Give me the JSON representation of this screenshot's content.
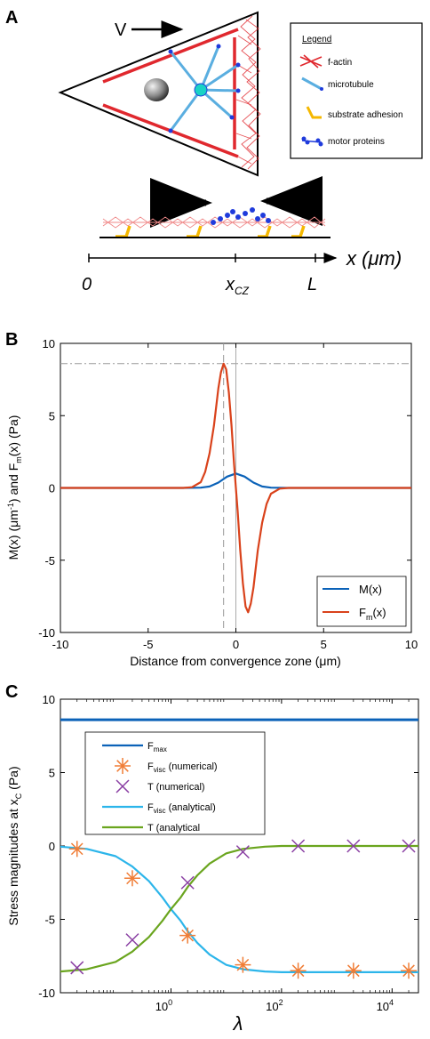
{
  "panel_a": {
    "label": "A",
    "velocity_label": "V",
    "legend": {
      "title": "Legend",
      "items": [
        {
          "label": "f-actin",
          "icon": "f-actin-icon",
          "color": "#e0282e"
        },
        {
          "label": "microtubule",
          "icon": "microtubule-icon",
          "color": "#5aaee0"
        },
        {
          "label": "substrate adhesion",
          "icon": "adhesion-icon",
          "color": "#f5b800"
        },
        {
          "label": "motor proteins",
          "icon": "motor-protein-icon",
          "color": "#1f3bdc"
        }
      ]
    },
    "axis": {
      "label": "x (μm)",
      "ticks": [
        "0",
        "x",
        "L"
      ],
      "tick_sub": "CZ"
    }
  },
  "chart_data": [
    {
      "panel": "B",
      "type": "line",
      "xlabel": "Distance from convergence zone (μm)",
      "ylabel": "M(x) (μm⁻¹) and F_m(x) (Pa)",
      "xlim": [
        -10,
        10
      ],
      "ylim": [
        -10,
        10
      ],
      "xticks": [
        -10,
        -5,
        0,
        5,
        10
      ],
      "yticks": [
        -10,
        -5,
        0,
        5,
        10
      ],
      "legend_position": "bottom-right",
      "reference_lines": {
        "horizontal_dashdot": 8.6,
        "vertical_dashed": -0.7,
        "vertical_solid": 0
      },
      "series": [
        {
          "name": "M(x)",
          "name_sub": "",
          "color": "#0b62b8",
          "x": [
            -10,
            -3,
            -2,
            -1.5,
            -1,
            -0.5,
            0,
            0.5,
            1,
            1.5,
            2,
            3,
            10
          ],
          "y": [
            0,
            0,
            0.02,
            0.1,
            0.37,
            0.78,
            1.0,
            0.78,
            0.37,
            0.1,
            0.02,
            0,
            0
          ]
        },
        {
          "name": "F",
          "name_sub": "m",
          "name_suffix": "(x)",
          "color": "#d9421b",
          "x": [
            -10,
            -3,
            -2.5,
            -2,
            -1.75,
            -1.5,
            -1.25,
            -1,
            -0.85,
            -0.7,
            -0.55,
            -0.4,
            -0.25,
            -0.1,
            0,
            0.1,
            0.25,
            0.4,
            0.55,
            0.7,
            0.85,
            1,
            1.25,
            1.5,
            1.75,
            2,
            2.5,
            3,
            10
          ],
          "y": [
            0,
            0,
            0.05,
            0.4,
            1.1,
            2.4,
            4.3,
            6.9,
            8.0,
            8.6,
            8.2,
            6.6,
            4.3,
            1.6,
            0,
            -1.6,
            -4.3,
            -6.6,
            -8.2,
            -8.6,
            -8.0,
            -6.9,
            -4.3,
            -2.4,
            -1.1,
            -0.4,
            -0.05,
            0,
            0
          ]
        }
      ]
    },
    {
      "panel": "C",
      "type": "line",
      "xlabel": "λ",
      "ylabel": "Stress magnitudes at x",
      "ylabel_sub": "C",
      "ylabel_suffix": " (Pa)",
      "xscale": "log",
      "xlim": [
        0.01,
        30000
      ],
      "ylim": [
        -10,
        10
      ],
      "xticks": [
        1,
        100,
        10000
      ],
      "xtick_labels": [
        {
          "base": "10",
          "exp": "0"
        },
        {
          "base": "10",
          "exp": "2"
        },
        {
          "base": "10",
          "exp": "4"
        }
      ],
      "yticks": [
        -10,
        -5,
        0,
        5,
        10
      ],
      "legend_position": "top-left",
      "series": [
        {
          "name": "F",
          "name_sub": "max",
          "name_suffix": "",
          "color": "#0b62b8",
          "style": "line",
          "x": [
            0.01,
            30000
          ],
          "y": [
            8.6,
            8.6
          ]
        },
        {
          "name": "F",
          "name_sub": "visc",
          "name_suffix": " (numerical)",
          "color": "#f07d36",
          "style": "asterisk",
          "x": [
            0.02,
            0.2,
            2,
            20,
            200,
            2000,
            20000
          ],
          "y": [
            -0.2,
            -2.2,
            -6.1,
            -8.1,
            -8.5,
            -8.5,
            -8.5
          ]
        },
        {
          "name": "T (numerical)",
          "name_sub": "",
          "name_suffix": "",
          "color": "#8a3fa3",
          "style": "x",
          "x": [
            0.02,
            0.2,
            2,
            20,
            200,
            2000,
            20000
          ],
          "y": [
            -8.3,
            -6.4,
            -2.5,
            -0.4,
            0,
            0,
            0
          ]
        },
        {
          "name": "F",
          "name_sub": "visc",
          "name_suffix": " (analytical)",
          "color": "#2cb5ea",
          "style": "line",
          "x": [
            0.01,
            0.03,
            0.1,
            0.2,
            0.4,
            0.7,
            1,
            1.5,
            2,
            3,
            5,
            10,
            20,
            50,
            100,
            1000,
            30000
          ],
          "y": [
            -0.05,
            -0.2,
            -0.7,
            -1.4,
            -2.4,
            -3.5,
            -4.3,
            -5.1,
            -5.8,
            -6.6,
            -7.4,
            -8.1,
            -8.4,
            -8.55,
            -8.6,
            -8.6,
            -8.6
          ]
        },
        {
          "name": "T (analytical",
          "name_sub": "",
          "name_suffix": "",
          "color": "#6aa51e",
          "style": "line",
          "x": [
            0.01,
            0.03,
            0.1,
            0.2,
            0.4,
            0.7,
            1,
            1.5,
            2,
            3,
            5,
            10,
            20,
            50,
            100,
            1000,
            30000
          ],
          "y": [
            -8.55,
            -8.4,
            -7.9,
            -7.2,
            -6.2,
            -5.1,
            -4.3,
            -3.5,
            -2.8,
            -2.0,
            -1.2,
            -0.5,
            -0.2,
            -0.05,
            0,
            0,
            0
          ]
        }
      ]
    }
  ]
}
